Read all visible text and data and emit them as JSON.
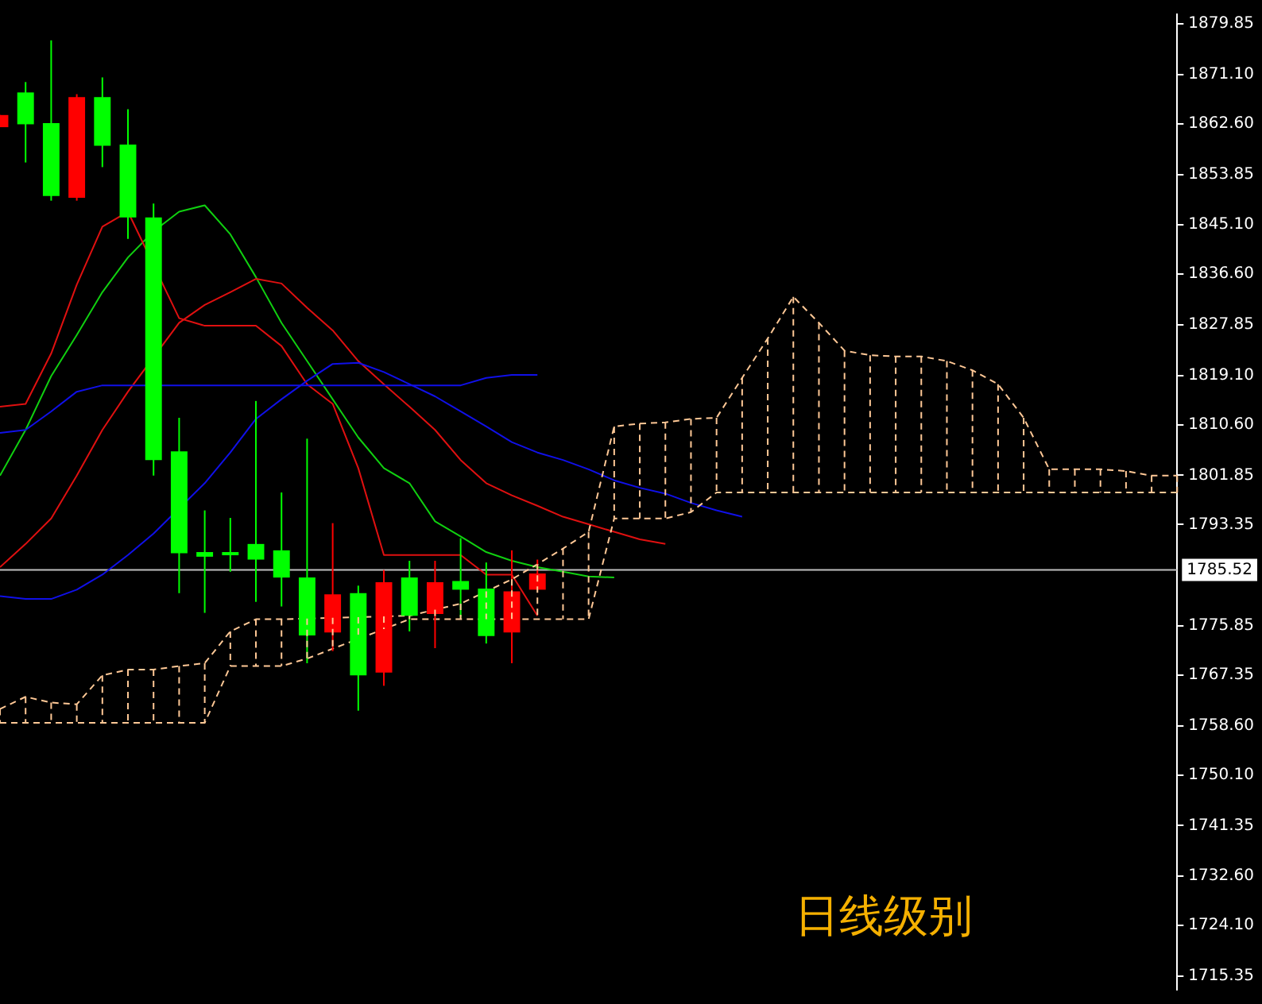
{
  "chart_data": {
    "type": "candlestick",
    "categories": [
      null,
      null,
      null,
      null,
      null,
      null,
      null,
      null,
      null,
      null,
      null,
      null,
      null,
      null,
      null,
      null,
      null,
      null,
      null,
      null,
      null,
      null,
      null,
      null,
      null,
      null,
      null,
      null,
      null,
      null,
      null,
      null,
      null,
      null,
      null,
      null,
      null,
      null,
      null,
      null,
      null,
      null,
      null,
      null,
      null,
      null,
      null
    ],
    "ylim": [
      1713,
      1881.5
    ],
    "yticks": [
      {
        "value": 1879.85,
        "label": "1879.85"
      },
      {
        "value": 1871.1,
        "label": "1871.10"
      },
      {
        "value": 1862.6,
        "label": "1862.60"
      },
      {
        "value": 1853.85,
        "label": "1853.85"
      },
      {
        "value": 1845.1,
        "label": "1845.10"
      },
      {
        "value": 1836.6,
        "label": "1836.60"
      },
      {
        "value": 1827.85,
        "label": "1827.85"
      },
      {
        "value": 1819.1,
        "label": "1819.10"
      },
      {
        "value": 1810.6,
        "label": "1810.60"
      },
      {
        "value": 1801.85,
        "label": "1801.85"
      },
      {
        "value": 1793.35,
        "label": "1793.35"
      },
      {
        "value": 1775.85,
        "label": "1775.85"
      },
      {
        "value": 1767.35,
        "label": "1767.35"
      },
      {
        "value": 1758.6,
        "label": "1758.60"
      },
      {
        "value": 1750.1,
        "label": "1750.10"
      },
      {
        "value": 1741.35,
        "label": "1741.35"
      },
      {
        "value": 1732.6,
        "label": "1732.60"
      },
      {
        "value": 1724.1,
        "label": "1724.10"
      },
      {
        "value": 1715.35,
        "label": "1715.35"
      }
    ],
    "tick_labels": "y",
    "grid": false,
    "legend": false,
    "marker": "none",
    "ref_lines": [
      {
        "axis": "y",
        "value": 1785.52,
        "label": "1785.52",
        "color": "#c0c0c0"
      }
    ],
    "annotations": [
      "日线级别"
    ],
    "series": [
      {
        "type": "line",
        "color": "#ffc896",
        "line_style": "dashed",
        "values": [
          1761.5,
          1763.6,
          1762.6,
          1762.3,
          1767.3,
          1768.3,
          1768.3,
          1768.9,
          1769.4,
          1774.9,
          1777.0,
          1777.0,
          null,
          null,
          null,
          null,
          1777.6,
          null,
          1779.7,
          null,
          1783.9,
          1786.5,
          1789.2,
          1792.1,
          1810.3,
          1810.8,
          1811.0,
          1811.6,
          1811.8,
          1818.7,
          1825.5,
          1832.7,
          1828.2,
          1823.4,
          1822.6,
          1822.4,
          1822.4,
          1821.6,
          1820.0,
          1817.6,
          1811.8,
          1802.9,
          1802.9,
          1802.9,
          1802.6,
          1801.8,
          1801.8
        ]
      },
      {
        "type": "line",
        "color": "#ffc896",
        "line_style": "dashed",
        "values": [
          1759.1,
          1759.1,
          1759.1,
          1759.1,
          1759.1,
          1759.1,
          1759.1,
          1759.1,
          1759.1,
          1768.9,
          1768.9,
          1768.9,
          1770.2,
          null,
          null,
          null,
          1777.0,
          1777.0,
          1777.0,
          null,
          null,
          1777.0,
          1777.0,
          1777.0,
          1794.4,
          1794.4,
          1794.4,
          1795.5,
          1798.9,
          1798.9,
          1798.9,
          1798.9,
          1798.9,
          1798.9,
          1798.9,
          1798.9,
          1798.9,
          1798.9,
          1798.9,
          1798.9,
          1798.9,
          1798.9,
          1798.9,
          1798.9,
          1798.9,
          1798.9,
          1798.9
        ]
      },
      {
        "type": "line",
        "color": "#1010e8",
        "values": [
          1809.2,
          1809.7,
          1812.9,
          1816.3,
          1817.4,
          1817.4,
          null,
          1817.4,
          1817.4,
          1817.4,
          1817.4,
          1817.4,
          1817.4,
          1817.4,
          1817.4,
          1817.4,
          1817.4,
          1817.4,
          1817.4,
          1818.7,
          1819.2,
          1819.2,
          null,
          null,
          null,
          null,
          null,
          null,
          null,
          null,
          null,
          null,
          null,
          null,
          null,
          null,
          null,
          null,
          null,
          null,
          null,
          null,
          null,
          null,
          null,
          null,
          null
        ]
      },
      {
        "type": "line",
        "color": "#1010e8",
        "values": [
          1781.0,
          1780.5,
          1780.5,
          1782.1,
          1784.7,
          1788.1,
          1791.8,
          null,
          1800.5,
          1805.8,
          1811.6,
          1815.0,
          1818.2,
          1821.1,
          1821.3,
          1819.7,
          1817.6,
          1815.5,
          1812.9,
          1810.3,
          1807.6,
          1805.8,
          1804.5,
          1802.9,
          1801.0,
          1799.7,
          1798.7,
          1797.1,
          1795.8,
          1794.7,
          null,
          null,
          null,
          null,
          null,
          null,
          null,
          null,
          null,
          null,
          null,
          null,
          null,
          null,
          null,
          null,
          null
        ]
      },
      {
        "type": "line",
        "color": "#e01010",
        "values": [
          1786.0,
          1790.0,
          1794.4,
          1801.8,
          1809.7,
          1816.3,
          null,
          1828.2,
          1831.3,
          1833.5,
          1835.8,
          1835.0,
          1830.8,
          1826.9,
          1821.6,
          1817.6,
          1813.7,
          1809.7,
          1804.5,
          1800.5,
          1798.4,
          1796.6,
          1794.7,
          1793.4,
          1792.1,
          1790.8,
          1790.0,
          null,
          null,
          null,
          null,
          null,
          null,
          null,
          null,
          null,
          null,
          null,
          null,
          null,
          null,
          null,
          null,
          null,
          null,
          null,
          null
        ]
      },
      {
        "type": "line",
        "color": "#e01010",
        "values": [
          1813.7,
          1814.2,
          1822.9,
          1834.8,
          1844.8,
          1847.4,
          null,
          1829.0,
          1827.7,
          1827.7,
          1827.7,
          1824.2,
          1817.6,
          1814.2,
          1803.1,
          1788.1,
          1788.1,
          1788.1,
          1788.1,
          1784.7,
          1784.7,
          1777.6,
          null,
          null,
          null,
          null,
          null,
          null,
          null,
          null,
          null,
          null,
          null,
          null,
          null,
          null,
          null,
          null,
          null,
          null,
          null,
          null,
          null,
          null,
          null,
          null,
          null
        ]
      },
      {
        "type": "line",
        "color": "#10d010",
        "values": [
          1801.8,
          1809.7,
          1819.0,
          1826.1,
          1833.5,
          1839.5,
          1844.0,
          1847.4,
          1848.5,
          1843.5,
          1836.1,
          1828.2,
          1821.6,
          1815.0,
          1808.4,
          1803.1,
          1800.5,
          1793.9,
          1791.3,
          1788.6,
          1787.1,
          1786.0,
          1785.2,
          1784.4,
          1784.2,
          null,
          null,
          null,
          null,
          null,
          null,
          null,
          null,
          null,
          null,
          null,
          null,
          null,
          null,
          null,
          null,
          null,
          null,
          null,
          null,
          null,
          null
        ]
      },
      {
        "type": "candlestick",
        "colors": [
          "#ff0000",
          "#00ff00",
          "#00ff00",
          "#ff0000",
          "#00ff00",
          "#00ff00",
          "#00ff00",
          "#00ff00",
          "#00ff00",
          "#00ff00",
          "#00ff00",
          "#00ff00",
          "#00ff00",
          "#ff0000",
          "#00ff00",
          "#ff0000",
          "#00ff00",
          "#ff0000",
          "#00ff00",
          "#00ff00",
          "#ff0000",
          "#ff0000",
          null,
          null,
          null,
          null,
          null,
          null,
          null,
          null,
          null,
          null,
          null,
          null,
          null,
          null,
          null,
          null,
          null,
          null,
          null,
          null,
          null,
          null,
          null,
          null,
          null
        ],
        "ohlc": [
          [
            1862.0,
            1864.1,
            1862.0,
            1864.1
          ],
          [
            1868.0,
            1869.8,
            1855.9,
            1862.5
          ],
          [
            1862.7,
            1877.0,
            1849.3,
            1850.1
          ],
          [
            1849.8,
            1867.7,
            1849.3,
            1867.2
          ],
          [
            1867.2,
            1870.6,
            1855.1,
            1858.8
          ],
          [
            1859.0,
            1865.1,
            1842.7,
            1846.4
          ],
          [
            1846.4,
            1848.8,
            1801.8,
            1804.5
          ],
          [
            1806.0,
            1811.8,
            1781.5,
            1788.4
          ],
          [
            1788.6,
            1795.8,
            1778.1,
            1787.8
          ],
          [
            1788.6,
            1794.5,
            1785.2,
            1788.1
          ],
          [
            1790.0,
            1814.7,
            1780.0,
            1787.3
          ],
          [
            1788.9,
            1798.9,
            1779.2,
            1784.2
          ],
          [
            1784.2,
            1808.2,
            1769.4,
            1774.2
          ],
          [
            1774.7,
            1793.6,
            1771.5,
            1781.3
          ],
          [
            1781.5,
            1782.8,
            1761.2,
            1767.3
          ],
          [
            1767.8,
            1785.5,
            1765.5,
            1783.4
          ],
          [
            1784.2,
            1787.1,
            1774.9,
            1777.6
          ],
          [
            1777.9,
            1787.1,
            1772.0,
            1783.4
          ],
          [
            1783.6,
            1791.0,
            1777.3,
            1782.1
          ],
          [
            1782.3,
            1786.8,
            1772.8,
            1774.1
          ],
          [
            1774.7,
            1788.9,
            1769.4,
            1781.8
          ],
          [
            1782.1,
            1787.3,
            1782.1,
            1784.9
          ],
          null,
          null,
          null,
          null,
          null,
          null,
          null,
          null,
          null,
          null,
          null,
          null,
          null,
          null,
          null,
          null,
          null,
          null,
          null,
          null,
          null,
          null,
          null,
          null,
          null
        ]
      }
    ]
  }
}
